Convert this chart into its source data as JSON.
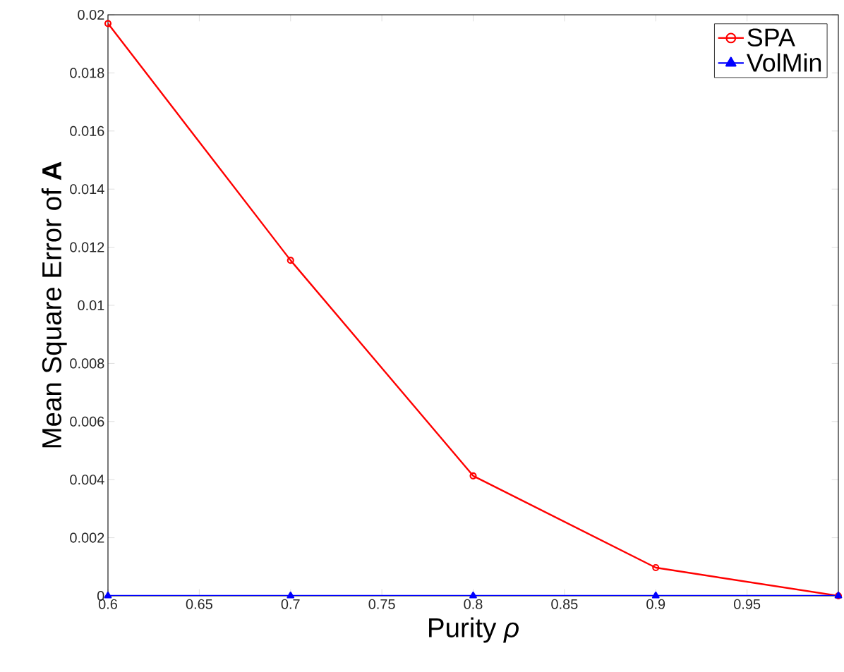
{
  "chart_data": {
    "type": "line",
    "xlabel": "Purity *ρ*",
    "ylabel": "Mean Square Error of **A**",
    "x": [
      0.6,
      0.7,
      0.8,
      0.9,
      1.0
    ],
    "series": [
      {
        "name": "SPA",
        "color": "#ff0000",
        "marker": "circle",
        "values": [
          0.0197,
          0.01155,
          0.00413,
          0.00097,
          0.0
        ]
      },
      {
        "name": "VolMin",
        "color": "#0000ff",
        "marker": "triangle",
        "values": [
          0.0,
          0.0,
          0.0,
          0.0,
          0.0
        ]
      }
    ],
    "xlim": [
      0.6,
      1.0
    ],
    "ylim": [
      0,
      0.02
    ],
    "xticks": [
      0.6,
      0.65,
      0.7,
      0.75,
      0.8,
      0.85,
      0.9,
      0.95
    ],
    "yticks": [
      0,
      0.002,
      0.004,
      0.006,
      0.008,
      0.01,
      0.012,
      0.014,
      0.016,
      0.018,
      0.02
    ],
    "grid": false,
    "legend": "top right",
    "line_style": "solid"
  }
}
